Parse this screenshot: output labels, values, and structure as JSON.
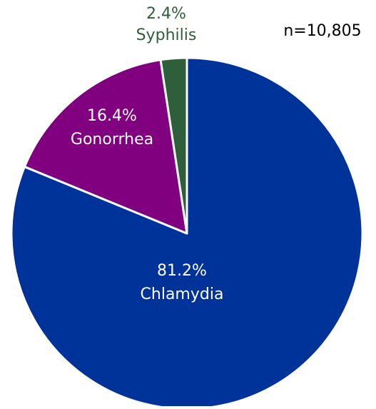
{
  "chart_data": {
    "type": "pie",
    "annotation": "n=10,805",
    "categories": [
      "Chlamydia",
      "Gonorrhea",
      "Syphilis"
    ],
    "values": [
      81.2,
      16.4,
      2.4
    ],
    "value_labels": [
      "81.2%",
      "16.4%",
      "2.4%"
    ],
    "colors": [
      "#003399",
      "#800080",
      "#2e5e3a"
    ],
    "label_colors": [
      "#ffffff",
      "#ffffff",
      "#2e5e3a"
    ]
  }
}
